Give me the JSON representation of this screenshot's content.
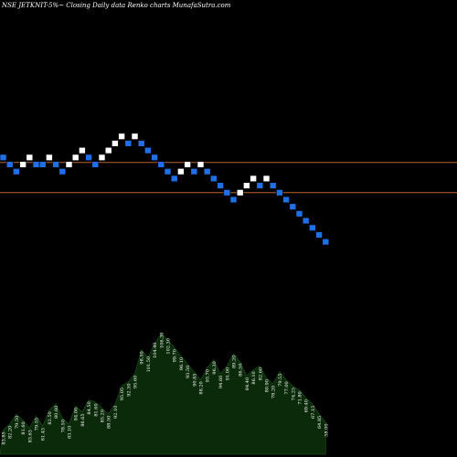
{
  "chart_data": {
    "type": "renko",
    "title": "NSE JETKNIT-5%~  Closing Daily data  Renko  charts MunafaSutra.com",
    "colors": {
      "background": "#000000",
      "up_brick": "#ffffff",
      "down_brick": "#1f6fe6",
      "reference_line": "#b8652a",
      "volume_area": "#0a2a0a",
      "label_text": "#ffffff"
    },
    "reference_lines": [
      84.75,
      74.0
    ],
    "bricks": [
      {
        "dir": "down",
        "value": 86.5
      },
      {
        "dir": "down",
        "value": 84.0
      },
      {
        "dir": "down",
        "value": 81.5
      },
      {
        "dir": "up",
        "value": 84.0
      },
      {
        "dir": "up",
        "value": 86.5
      },
      {
        "dir": "down",
        "value": 84.0
      },
      {
        "dir": "down",
        "value": 84.0
      },
      {
        "dir": "up",
        "value": 86.5
      },
      {
        "dir": "down",
        "value": 84.0
      },
      {
        "dir": "down",
        "value": 81.5
      },
      {
        "dir": "up",
        "value": 84.0
      },
      {
        "dir": "up",
        "value": 86.5
      },
      {
        "dir": "up",
        "value": 89.0
      },
      {
        "dir": "down",
        "value": 86.5
      },
      {
        "dir": "down",
        "value": 84.0
      },
      {
        "dir": "up",
        "value": 86.5
      },
      {
        "dir": "up",
        "value": 89.0
      },
      {
        "dir": "up",
        "value": 91.5
      },
      {
        "dir": "up",
        "value": 94.0
      },
      {
        "dir": "down",
        "value": 91.5
      },
      {
        "dir": "up",
        "value": 94.0
      },
      {
        "dir": "down",
        "value": 91.5
      },
      {
        "dir": "down",
        "value": 89.0
      },
      {
        "dir": "down",
        "value": 86.5
      },
      {
        "dir": "down",
        "value": 84.0
      },
      {
        "dir": "down",
        "value": 81.5
      },
      {
        "dir": "down",
        "value": 79.0
      },
      {
        "dir": "up",
        "value": 81.5
      },
      {
        "dir": "up",
        "value": 84.0
      },
      {
        "dir": "down",
        "value": 81.5
      },
      {
        "dir": "up",
        "value": 84.0
      },
      {
        "dir": "down",
        "value": 81.5
      },
      {
        "dir": "down",
        "value": 79.0
      },
      {
        "dir": "down",
        "value": 76.5
      },
      {
        "dir": "down",
        "value": 74.0
      },
      {
        "dir": "down",
        "value": 71.5
      },
      {
        "dir": "up",
        "value": 74.0
      },
      {
        "dir": "up",
        "value": 76.5
      },
      {
        "dir": "up",
        "value": 79.0
      },
      {
        "dir": "down",
        "value": 76.5
      },
      {
        "dir": "up",
        "value": 79.0
      },
      {
        "dir": "down",
        "value": 76.5
      },
      {
        "dir": "down",
        "value": 74.0
      },
      {
        "dir": "down",
        "value": 71.5
      },
      {
        "dir": "down",
        "value": 69.0
      },
      {
        "dir": "down",
        "value": 66.5
      },
      {
        "dir": "down",
        "value": 64.0
      },
      {
        "dir": "down",
        "value": 61.5
      },
      {
        "dir": "down",
        "value": 59.0
      },
      {
        "dir": "down",
        "value": 56.5
      }
    ],
    "labels": [
      "83.85",
      "82.20",
      "79.50",
      "81.60",
      "83.65",
      "79.55",
      "81.45",
      "82.50",
      "80.60",
      "78.50",
      "83.10",
      "84.00",
      "86.65",
      "84.50",
      "81.60",
      "85.20",
      "88.50",
      "92.10",
      "95.05",
      "92.30",
      "95.60",
      "98.50",
      "101.50",
      "104.40",
      "106.30",
      "102.30",
      "99.70",
      "96.10",
      "93.50",
      "90.85",
      "88.20",
      "93.70",
      "96.30",
      "94.60",
      "91.00",
      "89.20",
      "86.50",
      "84.40",
      "86.10",
      "82.60",
      "80.90",
      "78.20",
      "79.55",
      "77.00",
      "74.25",
      "71.80",
      "69.40",
      "67.15",
      "64.85",
      "58.00"
    ],
    "volume_profile": [
      12,
      15,
      20,
      17,
      13,
      19,
      14,
      22,
      25,
      18,
      15,
      24,
      21,
      27,
      26,
      23,
      20,
      25,
      34,
      36,
      40,
      52,
      48,
      55,
      60,
      57,
      53,
      49,
      45,
      41,
      37,
      43,
      47,
      40,
      44,
      50,
      46,
      39,
      42,
      44,
      38,
      35,
      41,
      37,
      34,
      32,
      28,
      25,
      20,
      16
    ]
  }
}
